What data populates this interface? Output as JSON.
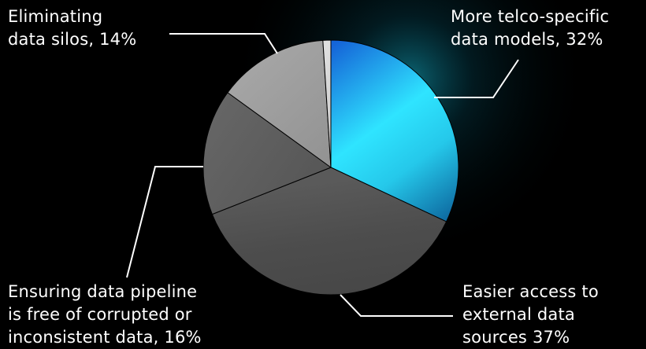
{
  "chart_data": {
    "type": "pie",
    "title": "",
    "slices": [
      {
        "label_lines": [
          "More telco-specific",
          "data models, 32%"
        ],
        "value": 32,
        "color": "#2fd6f4"
      },
      {
        "label_lines": [
          "Easier access to",
          "external data",
          "sources 37%"
        ],
        "value": 37,
        "color": "#4c4c4c"
      },
      {
        "label_lines": [
          "Ensuring data pipeline",
          "is free of corrupted or",
          "inconsistent data, 16%"
        ],
        "value": 16,
        "color": "#5e5e5e"
      },
      {
        "label_lines": [
          "Eliminating",
          "data silos, 14%"
        ],
        "value": 14,
        "color": "#a2a2a2"
      },
      {
        "label_lines": [],
        "value": 1,
        "color": "#d4d4d4"
      }
    ],
    "legend": "none",
    "start_angle": "12 o'clock, clockwise"
  }
}
